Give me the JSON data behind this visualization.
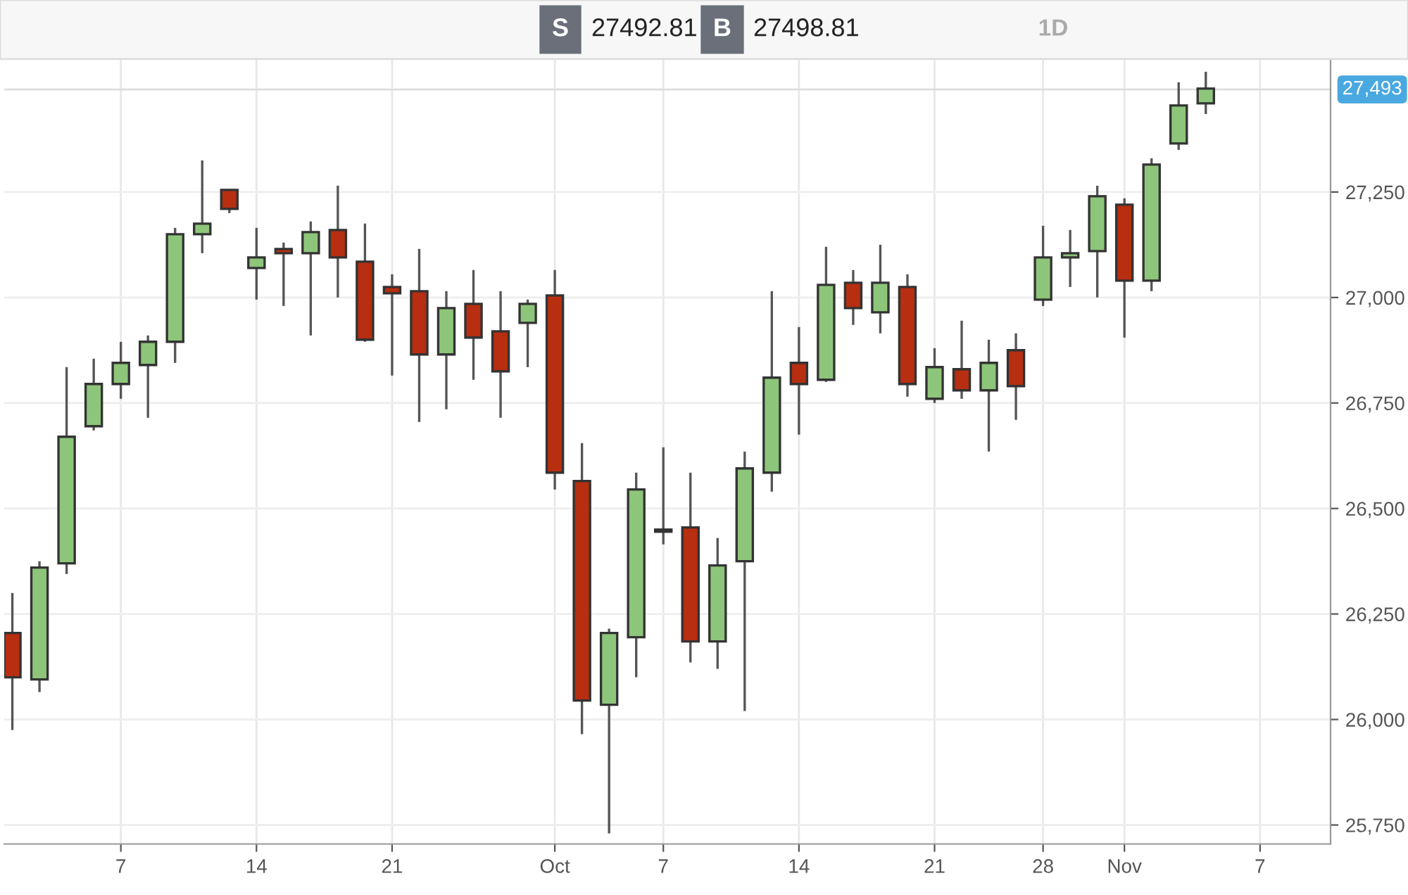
{
  "chart_data": {
    "type": "candlestick",
    "annotations": [
      "S",
      "27492.81",
      "B",
      "27498.81",
      "1D"
    ],
    "categories": [
      null,
      null,
      null,
      null,
      "7",
      null,
      null,
      null,
      null,
      "14",
      null,
      null,
      null,
      null,
      "21",
      null,
      null,
      null,
      null,
      null,
      "Oct",
      null,
      null,
      null,
      "7",
      null,
      null,
      null,
      null,
      "14",
      null,
      null,
      null,
      null,
      "21",
      null,
      null,
      null,
      "28",
      null,
      null,
      "Nov",
      null,
      null,
      null,
      null,
      "7"
    ],
    "ohlc": [
      [
        26205,
        26300,
        25975,
        26100
      ],
      [
        26095,
        26375,
        26065,
        26360
      ],
      [
        26370,
        26835,
        26345,
        26670
      ],
      [
        26695,
        26855,
        26685,
        26795
      ],
      [
        26795,
        26895,
        26760,
        26845
      ],
      [
        26840,
        26910,
        26715,
        26895
      ],
      [
        26895,
        27165,
        26845,
        27150
      ],
      [
        27150,
        27325,
        27105,
        27175
      ],
      [
        27255,
        27255,
        27200,
        27210
      ],
      [
        27070,
        27165,
        26995,
        27095
      ],
      [
        27115,
        27130,
        26980,
        27105
      ],
      [
        27105,
        27180,
        26910,
        27155
      ],
      [
        27160,
        27265,
        27000,
        27095
      ],
      [
        27085,
        27175,
        26895,
        26900
      ],
      [
        27025,
        27055,
        26815,
        27010
      ],
      [
        27015,
        27115,
        26705,
        26865
      ],
      [
        26865,
        27015,
        26735,
        26975
      ],
      [
        26985,
        27065,
        26805,
        26905
      ],
      [
        26920,
        27015,
        26715,
        26825
      ],
      [
        26940,
        26995,
        26835,
        26985
      ],
      [
        27005,
        27065,
        26545,
        26585
      ],
      [
        26565,
        26655,
        25965,
        26045
      ],
      [
        26035,
        26215,
        25730,
        26205
      ],
      [
        26195,
        26585,
        26100,
        26545
      ],
      [
        26445,
        26645,
        26415,
        26450
      ],
      [
        26455,
        26585,
        26135,
        26185
      ],
      [
        26185,
        26430,
        26120,
        26365
      ],
      [
        26375,
        26635,
        26020,
        26595
      ],
      [
        26585,
        27015,
        26540,
        26810
      ],
      [
        26845,
        26930,
        26675,
        26795
      ],
      [
        26805,
        27120,
        26800,
        27030
      ],
      [
        27035,
        27065,
        26935,
        26975
      ],
      [
        26965,
        27125,
        26915,
        27035
      ],
      [
        27025,
        27055,
        26765,
        26795
      ],
      [
        26760,
        26880,
        26750,
        26835
      ],
      [
        26830,
        26945,
        26760,
        26780
      ],
      [
        26780,
        26900,
        26635,
        26845
      ],
      [
        26875,
        26915,
        26710,
        26790
      ],
      [
        26995,
        27170,
        26980,
        27095
      ],
      [
        27095,
        27160,
        27025,
        27105
      ],
      [
        27110,
        27265,
        27000,
        27240
      ],
      [
        27220,
        27235,
        26905,
        27040
      ],
      [
        27040,
        27330,
        27015,
        27315
      ],
      [
        27365,
        27510,
        27350,
        27455
      ],
      [
        27460,
        27535,
        27435,
        27495
      ],
      null,
      null
    ],
    "colors": [
      "#b72e10",
      "#8dc67a",
      "#8dc67a",
      "#8dc67a",
      "#8dc67a",
      "#8dc67a",
      "#8dc67a",
      "#8dc67a",
      "#b72e10",
      "#8dc67a",
      "#b72e10",
      "#8dc67a",
      "#b72e10",
      "#b72e10",
      "#b72e10",
      "#b72e10",
      "#8dc67a",
      "#b72e10",
      "#b72e10",
      "#8dc67a",
      "#b72e10",
      "#b72e10",
      "#8dc67a",
      "#8dc67a",
      "#8dc67a",
      "#b72e10",
      "#8dc67a",
      "#8dc67a",
      "#8dc67a",
      "#b72e10",
      "#8dc67a",
      "#b72e10",
      "#8dc67a",
      "#b72e10",
      "#8dc67a",
      "#b72e10",
      "#8dc67a",
      "#b72e10",
      "#8dc67a",
      "#8dc67a",
      "#8dc67a",
      "#b72e10",
      "#8dc67a",
      "#8dc67a",
      "#8dc67a",
      null,
      null
    ],
    "ylim": [
      25705,
      27565
    ],
    "yticks": [
      {
        "value": 25750,
        "label": "25,750"
      },
      {
        "value": 26000,
        "label": "26,000"
      },
      {
        "value": 26250,
        "label": "26,250"
      },
      {
        "value": 26500,
        "label": "26,500"
      },
      {
        "value": 26750,
        "label": "26,750"
      },
      {
        "value": 27000,
        "label": "27,000"
      },
      {
        "value": 27250,
        "label": "27,250"
      }
    ],
    "ref_lines": [
      {
        "axis": "y",
        "value": 27493,
        "label": "27,493",
        "color": "#dddddd"
      }
    ],
    "grid": true
  }
}
